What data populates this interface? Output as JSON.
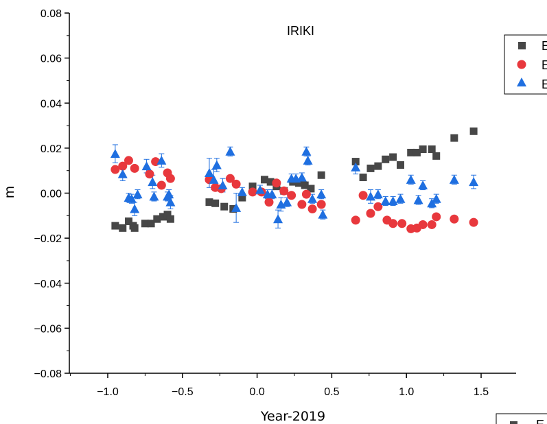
{
  "chart_data": {
    "type": "scatter",
    "title": "IRIKI",
    "xlabel": "Year-2019",
    "ylabel": "m",
    "xlim": [
      -1.25,
      1.75
    ],
    "ylim": [
      -0.08,
      0.08
    ],
    "xticks": [
      -1.0,
      -0.5,
      0.0,
      0.5,
      1.0,
      1.5
    ],
    "xtick_labels": [
      "−1.0",
      "−0.5",
      "0.0",
      "0.5",
      "1.0",
      "1.5"
    ],
    "yticks": [
      -0.08,
      -0.06,
      -0.04,
      -0.02,
      0.0,
      0.02,
      0.04,
      0.06,
      0.08
    ],
    "ytick_labels": [
      "−0.08",
      "−0.06",
      "−0.04",
      "−0.02",
      "0.00",
      "0.02",
      "0.04",
      "0.06",
      "0.08"
    ],
    "grid": false,
    "legend": {
      "position": "top-right",
      "labels": [
        "E",
        "E",
        "E"
      ]
    },
    "legend2": {
      "position": "bottom-right",
      "labels": [
        "E"
      ]
    },
    "series": [
      {
        "marker": "square",
        "color": "#474747",
        "x": [
          -0.95,
          -0.9,
          -0.86,
          -0.83,
          -0.82,
          -0.75,
          -0.71,
          -0.67,
          -0.63,
          -0.6,
          -0.58,
          -0.32,
          -0.28,
          -0.22,
          -0.16,
          -0.1,
          -0.03,
          0.05,
          0.09,
          0.13,
          0.18,
          0.24,
          0.28,
          0.32,
          0.36,
          0.43,
          0.66,
          0.71,
          0.76,
          0.81,
          0.86,
          0.91,
          0.96,
          1.03,
          1.07,
          1.11,
          1.17,
          1.2,
          1.32,
          1.45
        ],
        "y": [
          -0.0145,
          -0.0155,
          -0.0125,
          -0.0145,
          -0.0155,
          -0.0135,
          -0.0135,
          -0.0115,
          -0.0105,
          -0.0095,
          -0.0115,
          -0.004,
          -0.0045,
          -0.006,
          -0.007,
          -0.002,
          0.003,
          0.006,
          0.005,
          0.003,
          0.001,
          0.005,
          0.0045,
          0.0035,
          0.002,
          0.008,
          0.014,
          0.007,
          0.011,
          0.012,
          0.015,
          0.016,
          0.0125,
          0.018,
          0.018,
          0.0195,
          0.0195,
          0.0165,
          0.0245,
          0.0275
        ]
      },
      {
        "marker": "circle",
        "color": "#e8383d",
        "x": [
          -0.95,
          -0.9,
          -0.86,
          -0.82,
          -0.72,
          -0.68,
          -0.64,
          -0.6,
          -0.58,
          -0.32,
          -0.28,
          -0.24,
          -0.18,
          -0.14,
          -0.03,
          0.03,
          0.08,
          0.13,
          0.18,
          0.23,
          0.3,
          0.33,
          0.37,
          0.43,
          0.66,
          0.71,
          0.76,
          0.81,
          0.87,
          0.91,
          0.97,
          1.03,
          1.07,
          1.11,
          1.17,
          1.2,
          1.32,
          1.45
        ],
        "y": [
          0.0105,
          0.012,
          0.0145,
          0.011,
          0.0085,
          0.014,
          0.0035,
          0.009,
          0.0065,
          0.006,
          0.0025,
          0.002,
          0.0065,
          0.004,
          0.0005,
          0.0005,
          -0.004,
          0.0045,
          0.001,
          -0.001,
          -0.005,
          -0.0005,
          -0.007,
          -0.005,
          -0.012,
          -0.001,
          -0.009,
          -0.006,
          -0.012,
          -0.0135,
          -0.0135,
          -0.0158,
          -0.0155,
          -0.014,
          -0.014,
          -0.0105,
          -0.0115,
          -0.013
        ]
      },
      {
        "marker": "triangle",
        "color": "#1f6fe0",
        "x": [
          -0.95,
          -0.9,
          -0.86,
          -0.84,
          -0.82,
          -0.8,
          -0.74,
          -0.7,
          -0.69,
          -0.64,
          -0.6,
          -0.59,
          -0.58,
          -0.32,
          -0.29,
          -0.27,
          -0.23,
          -0.18,
          -0.14,
          -0.1,
          0.02,
          0.07,
          0.1,
          0.14,
          0.16,
          0.2,
          0.23,
          0.26,
          0.3,
          0.33,
          0.34,
          0.37,
          0.43,
          0.44,
          0.66,
          0.76,
          0.81,
          0.86,
          0.91,
          0.96,
          1.03,
          1.08,
          1.11,
          1.17,
          1.2,
          1.32,
          1.45
        ],
        "y": [
          0.0175,
          0.0085,
          -0.002,
          -0.0025,
          -0.007,
          -0.0005,
          0.012,
          0.005,
          -0.0015,
          0.0145,
          -0.0015,
          -0.0005,
          -0.004,
          0.009,
          0.006,
          0.0125,
          0.0035,
          0.0185,
          -0.0065,
          0.0005,
          0.0015,
          -0.0005,
          -0.0005,
          -0.0115,
          -0.005,
          -0.004,
          0.0065,
          0.0065,
          0.007,
          0.0185,
          0.0145,
          -0.0025,
          -0.0005,
          -0.0095,
          0.0115,
          -0.0015,
          -0.0005,
          -0.0035,
          -0.0035,
          -0.0025,
          0.006,
          -0.003,
          0.0035,
          -0.0045,
          -0.0025,
          0.006,
          0.005
        ],
        "yerr": [
          0.004,
          0.003,
          0.002,
          0.002,
          0.003,
          0.002,
          0.003,
          0.003,
          0.002,
          0.003,
          0.002,
          0.002,
          0.003,
          0.0065,
          0.0045,
          0.003,
          0.003,
          0.002,
          0.0065,
          0.002,
          0.002,
          0.002,
          0.002,
          0.004,
          0.003,
          0.002,
          0.002,
          0.002,
          0.002,
          0.002,
          0.002,
          0.002,
          0.002,
          0.002,
          0.003,
          0.003,
          0.002,
          0.002,
          0.002,
          0.002,
          0.002,
          0.002,
          0.002,
          0.002,
          0.002,
          0.002,
          0.003
        ]
      }
    ]
  }
}
